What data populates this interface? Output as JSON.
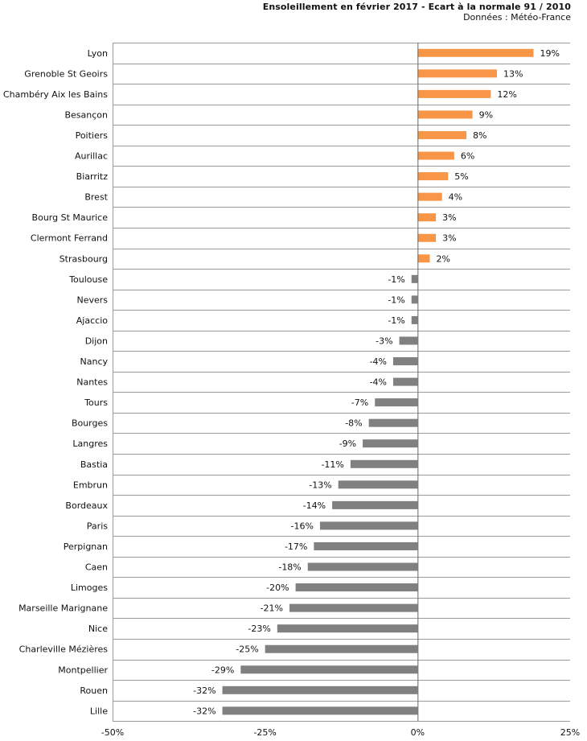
{
  "header": {
    "title": "Ensoleillement en février 2017 - Ecart à la normale 91 / 2010",
    "source": "Données : Météo-France"
  },
  "chart_data": {
    "type": "bar",
    "orientation": "horizontal",
    "title": "Ensoleillement en février 2017 - Ecart à la normale 91 / 2010",
    "subtitle": "Données : Météo-France",
    "categories": [
      "Lyon",
      "Grenoble St Geoirs",
      "Chambéry Aix les Bains",
      "Besançon",
      "Poitiers",
      "Aurillac",
      "Biarritz",
      "Brest",
      "Bourg St Maurice",
      "Clermont Ferrand",
      "Strasbourg",
      "Toulouse",
      "Nevers",
      "Ajaccio",
      "Dijon",
      "Nancy",
      "Nantes",
      "Tours",
      "Bourges",
      "Langres",
      "Bastia",
      "Embrun",
      "Bordeaux",
      "Paris",
      "Perpignan",
      "Caen",
      "Limoges",
      "Marseille Marignane",
      "Nice",
      "Charleville Mézières",
      "Montpellier",
      "Rouen",
      "Lille"
    ],
    "values": [
      19,
      13,
      12,
      9,
      8,
      6,
      5,
      4,
      3,
      3,
      2,
      -1,
      -1,
      -1,
      -3,
      -4,
      -4,
      -7,
      -8,
      -9,
      -11,
      -13,
      -14,
      -16,
      -17,
      -18,
      -20,
      -21,
      -23,
      -25,
      -29,
      -32,
      -32
    ],
    "labels": [
      "19%",
      "13%",
      "12%",
      "9%",
      "8%",
      "6%",
      "5%",
      "4%",
      "3%",
      "3%",
      "2%",
      "-1%",
      "-1%",
      "-1%",
      "-3%",
      "-4%",
      "-4%",
      "-7%",
      "-8%",
      "-9%",
      "-11%",
      "-13%",
      "-14%",
      "-16%",
      "-17%",
      "-18%",
      "-20%",
      "-21%",
      "-23%",
      "-25%",
      "-29%",
      "-32%",
      "-32%"
    ],
    "xlim": [
      -50,
      25
    ],
    "xticks": [
      -50,
      -25,
      0,
      25
    ],
    "xtick_labels": [
      "-50%",
      "-25%",
      "0%",
      "25%"
    ],
    "colors": {
      "positive": "#F79646",
      "negative": "#808080",
      "grid": "#9a9a9a",
      "zero_line": "#666666"
    },
    "grid": true
  }
}
